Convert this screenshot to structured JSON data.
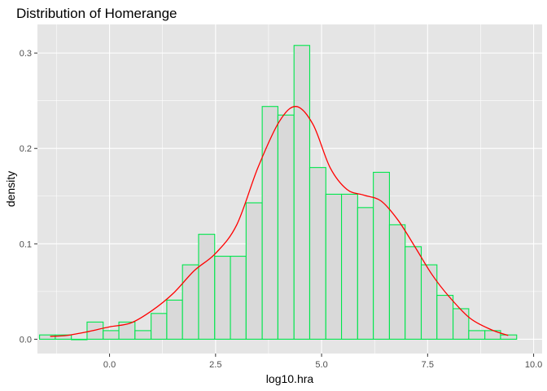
{
  "chart_data": {
    "type": "bar",
    "title": "Distribution of Homerange",
    "xlabel": "log10.hra",
    "ylabel": "density",
    "xlim": [
      -1.7,
      10.2
    ],
    "ylim": [
      -0.015,
      0.33
    ],
    "x_ticks": [
      0.0,
      2.5,
      5.0,
      7.5,
      10.0
    ],
    "x_tick_labels": [
      "0.0",
      "2.5",
      "5.0",
      "7.5",
      "10.0"
    ],
    "y_ticks": [
      0.0,
      0.1,
      0.2,
      0.3
    ],
    "y_tick_labels": [
      "0.0",
      "0.1",
      "0.2",
      "0.3"
    ],
    "grid": true,
    "background_color": "#e5e5e5",
    "grid_color": "#ffffff",
    "bar_fill_color": "#d9d9d9",
    "bar_outline_color": "#00e64d",
    "density_line_color": "#ff0000",
    "histogram": {
      "bin_left": [
        -1.65,
        -1.28,
        -0.9,
        -0.53,
        -0.15,
        0.22,
        0.6,
        0.98,
        1.35,
        1.72,
        2.1,
        2.48,
        2.85,
        3.22,
        3.6,
        3.97,
        4.35,
        4.72,
        5.1,
        5.47,
        5.85,
        6.22,
        6.6,
        6.97,
        7.35,
        7.72,
        8.1,
        8.47,
        8.85,
        9.22
      ],
      "bin_right": [
        -1.28,
        -0.9,
        -0.53,
        -0.15,
        0.22,
        0.6,
        0.98,
        1.35,
        1.72,
        2.1,
        2.48,
        2.85,
        3.22,
        3.6,
        3.97,
        4.35,
        4.72,
        5.1,
        5.47,
        5.85,
        6.22,
        6.6,
        6.97,
        7.35,
        7.72,
        8.1,
        8.47,
        8.85,
        9.22,
        9.6
      ],
      "density": [
        0.0045,
        0.0045,
        0.0,
        0.018,
        0.009,
        0.018,
        0.009,
        0.027,
        0.041,
        0.078,
        0.11,
        0.087,
        0.087,
        0.143,
        0.244,
        0.235,
        0.308,
        0.18,
        0.152,
        0.152,
        0.138,
        0.175,
        0.12,
        0.097,
        0.078,
        0.046,
        0.032,
        0.009,
        0.009,
        0.0045
      ]
    },
    "density_curve": {
      "x": [
        -1.4,
        -1.0,
        -0.5,
        0.0,
        0.5,
        1.0,
        1.5,
        2.0,
        2.5,
        3.0,
        3.5,
        4.0,
        4.4,
        4.8,
        5.2,
        5.6,
        6.0,
        6.4,
        6.8,
        7.2,
        7.6,
        8.0,
        8.5,
        9.0,
        9.4
      ],
      "y": [
        0.003,
        0.004,
        0.008,
        0.013,
        0.017,
        0.03,
        0.048,
        0.072,
        0.09,
        0.12,
        0.18,
        0.228,
        0.244,
        0.225,
        0.18,
        0.157,
        0.151,
        0.145,
        0.125,
        0.097,
        0.068,
        0.045,
        0.022,
        0.01,
        0.004
      ]
    }
  }
}
